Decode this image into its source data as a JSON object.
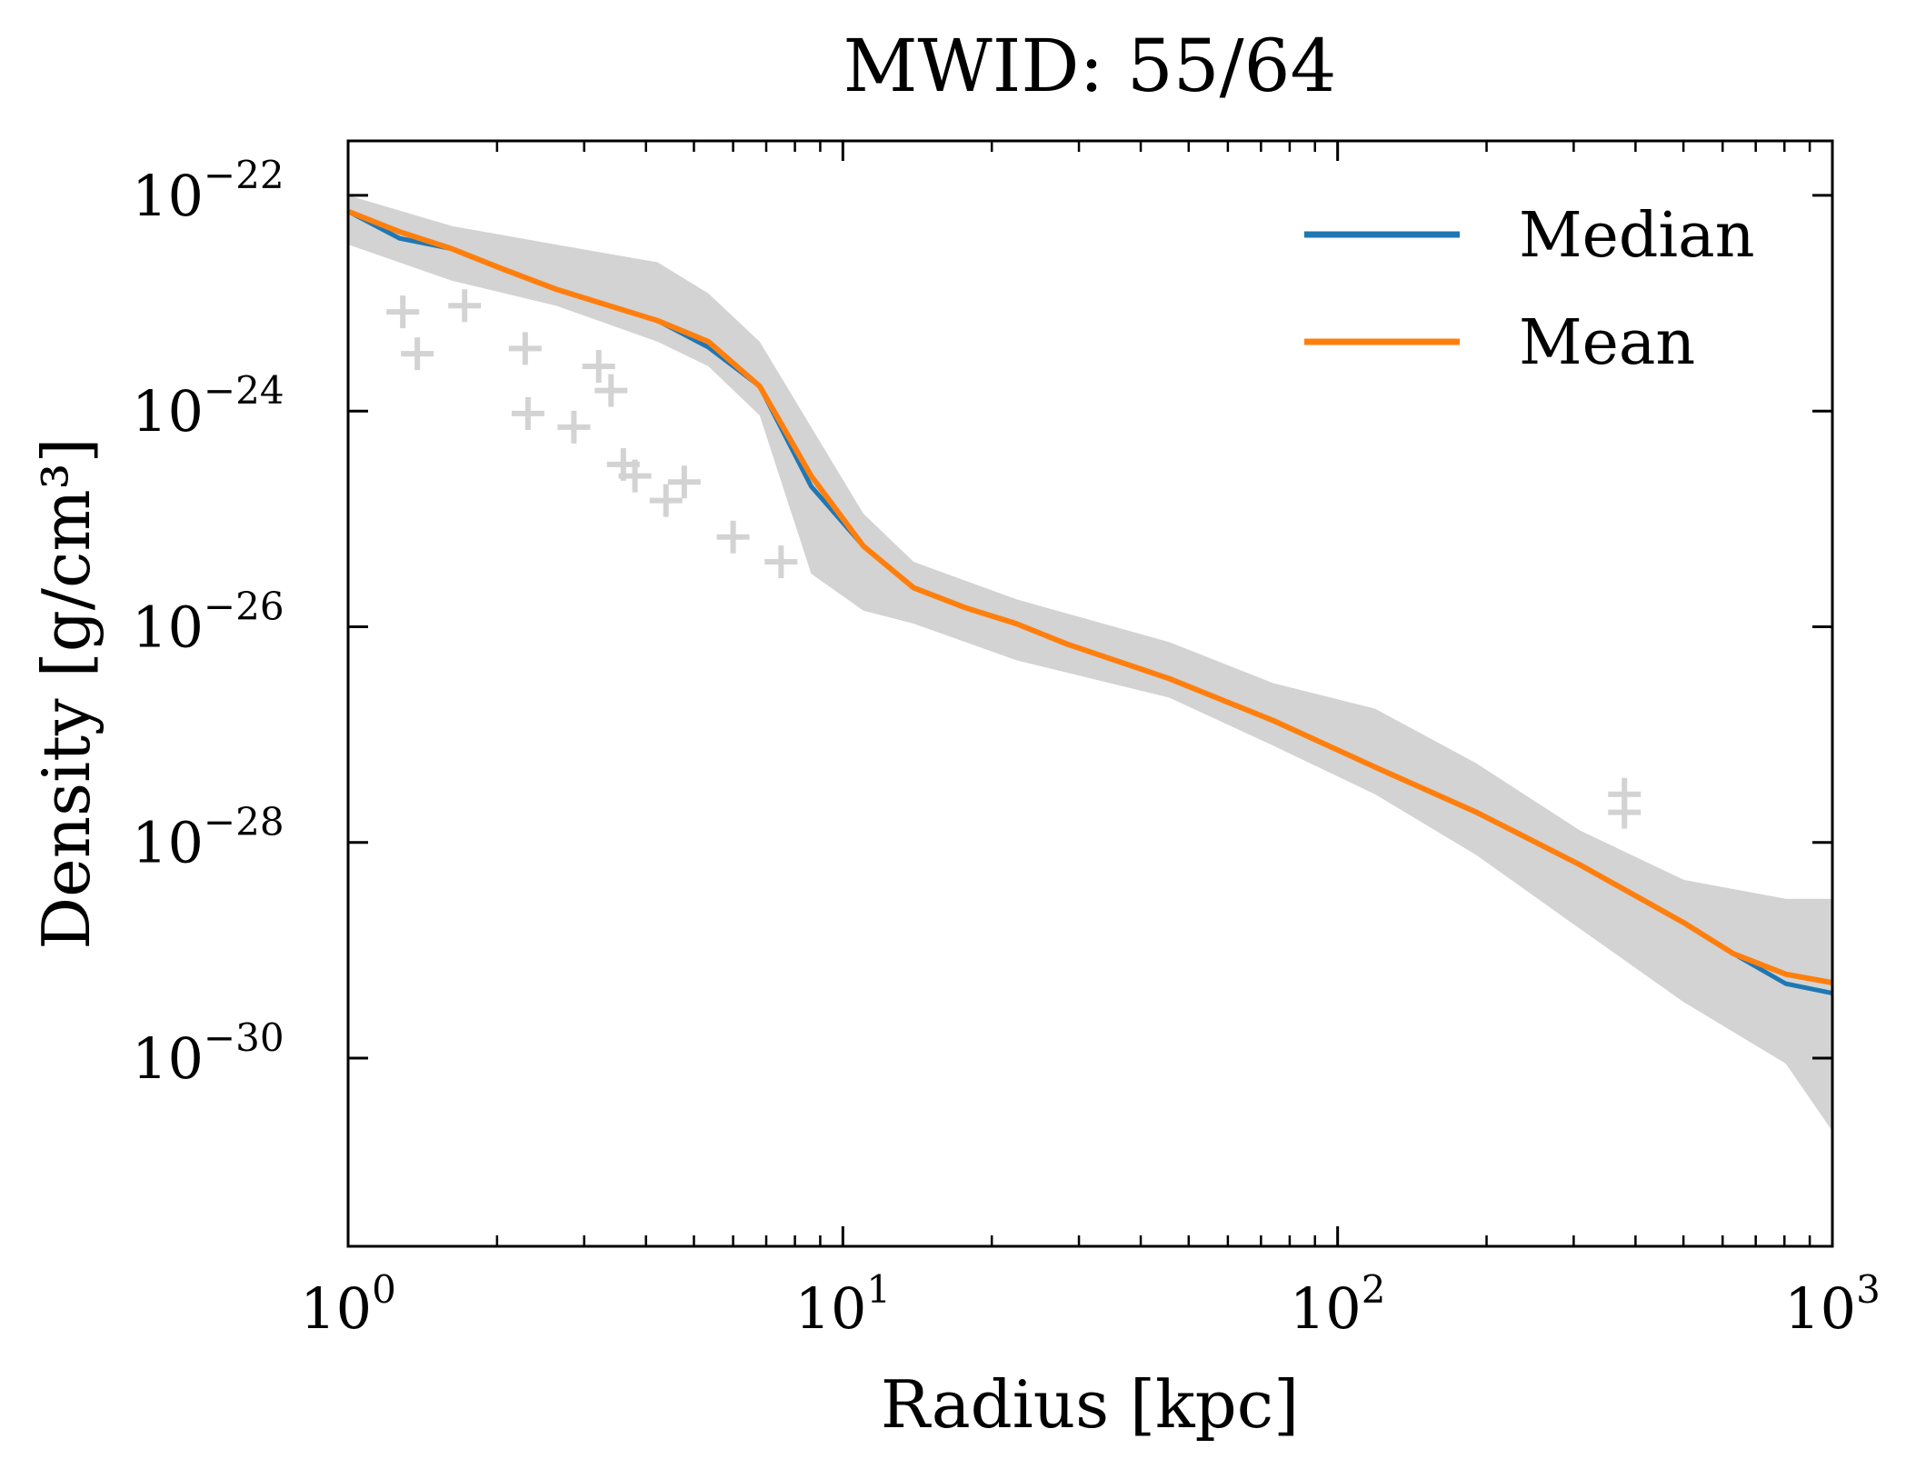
{
  "chart_data": {
    "type": "line",
    "title": "MWID: 55/64",
    "xlabel": "Radius [kpc]",
    "ylabel": "Density [g/cm³]",
    "xscale": "log",
    "yscale": "log",
    "xlim": [
      1,
      1000
    ],
    "ylim": [
      1.8e-32,
      3.2e-22
    ],
    "grid": false,
    "legend_position": "top-right",
    "x_ticks": [
      {
        "value": 1,
        "base": "10",
        "exp": "0"
      },
      {
        "value": 10,
        "base": "10",
        "exp": "1"
      },
      {
        "value": 100,
        "base": "10",
        "exp": "2"
      },
      {
        "value": 1000,
        "base": "10",
        "exp": "3"
      }
    ],
    "y_ticks": [
      {
        "value": 1e-22,
        "base": "10",
        "exp": "−22"
      },
      {
        "value": 1e-24,
        "base": "10",
        "exp": "−24"
      },
      {
        "value": 1e-26,
        "base": "10",
        "exp": "−26"
      },
      {
        "value": 1e-28,
        "base": "10",
        "exp": "−28"
      },
      {
        "value": 1e-30,
        "base": "10",
        "exp": "−30"
      }
    ],
    "colors": {
      "median": "#1f77b4",
      "mean": "#ff7f0e",
      "individual": "#d3d3d3"
    },
    "series": [
      {
        "name": "Median",
        "x": [
          1,
          1.27,
          1.62,
          2.04,
          2.63,
          4.22,
          5.35,
          6.79,
          8.63,
          11.0,
          13.9,
          17.7,
          22.4,
          28.4,
          45.7,
          74.1,
          119,
          191,
          309,
          501,
          631,
          805,
          1000
        ],
        "y": [
          7.1e-23,
          4e-23,
          3.2e-23,
          2.1e-23,
          1.35e-23,
          6.9e-24,
          3.9e-24,
          1.7e-24,
          2e-25,
          5.6e-26,
          2.3e-26,
          1.5e-26,
          1.07e-26,
          6.9e-27,
          3.3e-27,
          1.35e-27,
          5e-28,
          1.9e-28,
          6.2e-29,
          1.8e-29,
          9.3e-30,
          4.9e-30,
          4e-30
        ]
      },
      {
        "name": "Mean",
        "x": [
          1,
          1.27,
          1.62,
          2.04,
          2.63,
          4.22,
          5.35,
          6.79,
          8.63,
          11.0,
          13.9,
          17.7,
          22.4,
          28.4,
          45.7,
          74.1,
          119,
          191,
          309,
          501,
          631,
          805,
          1000
        ],
        "y": [
          7.1e-23,
          4.6e-23,
          3.2e-23,
          2.1e-23,
          1.35e-23,
          6.9e-24,
          4.4e-24,
          1.7e-24,
          2.5e-25,
          5.6e-26,
          2.3e-26,
          1.5e-26,
          1.07e-26,
          6.9e-27,
          3.3e-27,
          1.35e-27,
          5e-28,
          1.9e-28,
          6.2e-29,
          1.8e-29,
          9.3e-30,
          6e-30,
          5e-30
        ]
      }
    ],
    "individual_envelope": {
      "x": [
        1,
        1.62,
        2.63,
        4.22,
        5.35,
        6.79,
        8.63,
        11.0,
        13.9,
        22.4,
        45.7,
        74.1,
        119,
        191,
        309,
        501,
        805,
        1000
      ],
      "upper": [
        1e-22,
        5.2e-23,
        3.5e-23,
        2.4e-23,
        1.23e-23,
        4.4e-24,
        7.1e-25,
        1.12e-25,
        4e-26,
        1.8e-26,
        7.2e-27,
        3e-27,
        1.74e-27,
        5.4e-28,
        1.29e-28,
        4.5e-29,
        3e-29,
        3e-29
      ],
      "lower": [
        3.5e-23,
        1.62e-23,
        9.5e-24,
        4.4e-24,
        2.6e-24,
        9.1e-25,
        3.1e-26,
        1.41e-26,
        1.07e-26,
        4.9e-27,
        2.2e-27,
        7.9e-28,
        2.8e-28,
        7.6e-29,
        1.58e-29,
        3.3e-30,
        8.9e-31,
        2.1e-31
      ]
    },
    "individual_points": {
      "x": [
        1.29,
        1.38,
        2.31,
        2.86,
        3.4,
        3.6,
        4.39,
        6.0,
        7.5,
        380,
        380,
        1.72,
        2.28,
        3.21,
        3.8,
        4.78
      ],
      "y": [
        8.3e-24,
        3.4e-24,
        9.5e-25,
        7.1e-25,
        1.55e-24,
        3.2e-25,
        1.48e-25,
        6.8e-26,
        4e-26,
        2.8e-28,
        1.9e-28,
        9.5e-24,
        3.8e-24,
        2.6e-24,
        2.5e-25,
        2.2e-25
      ]
    }
  }
}
